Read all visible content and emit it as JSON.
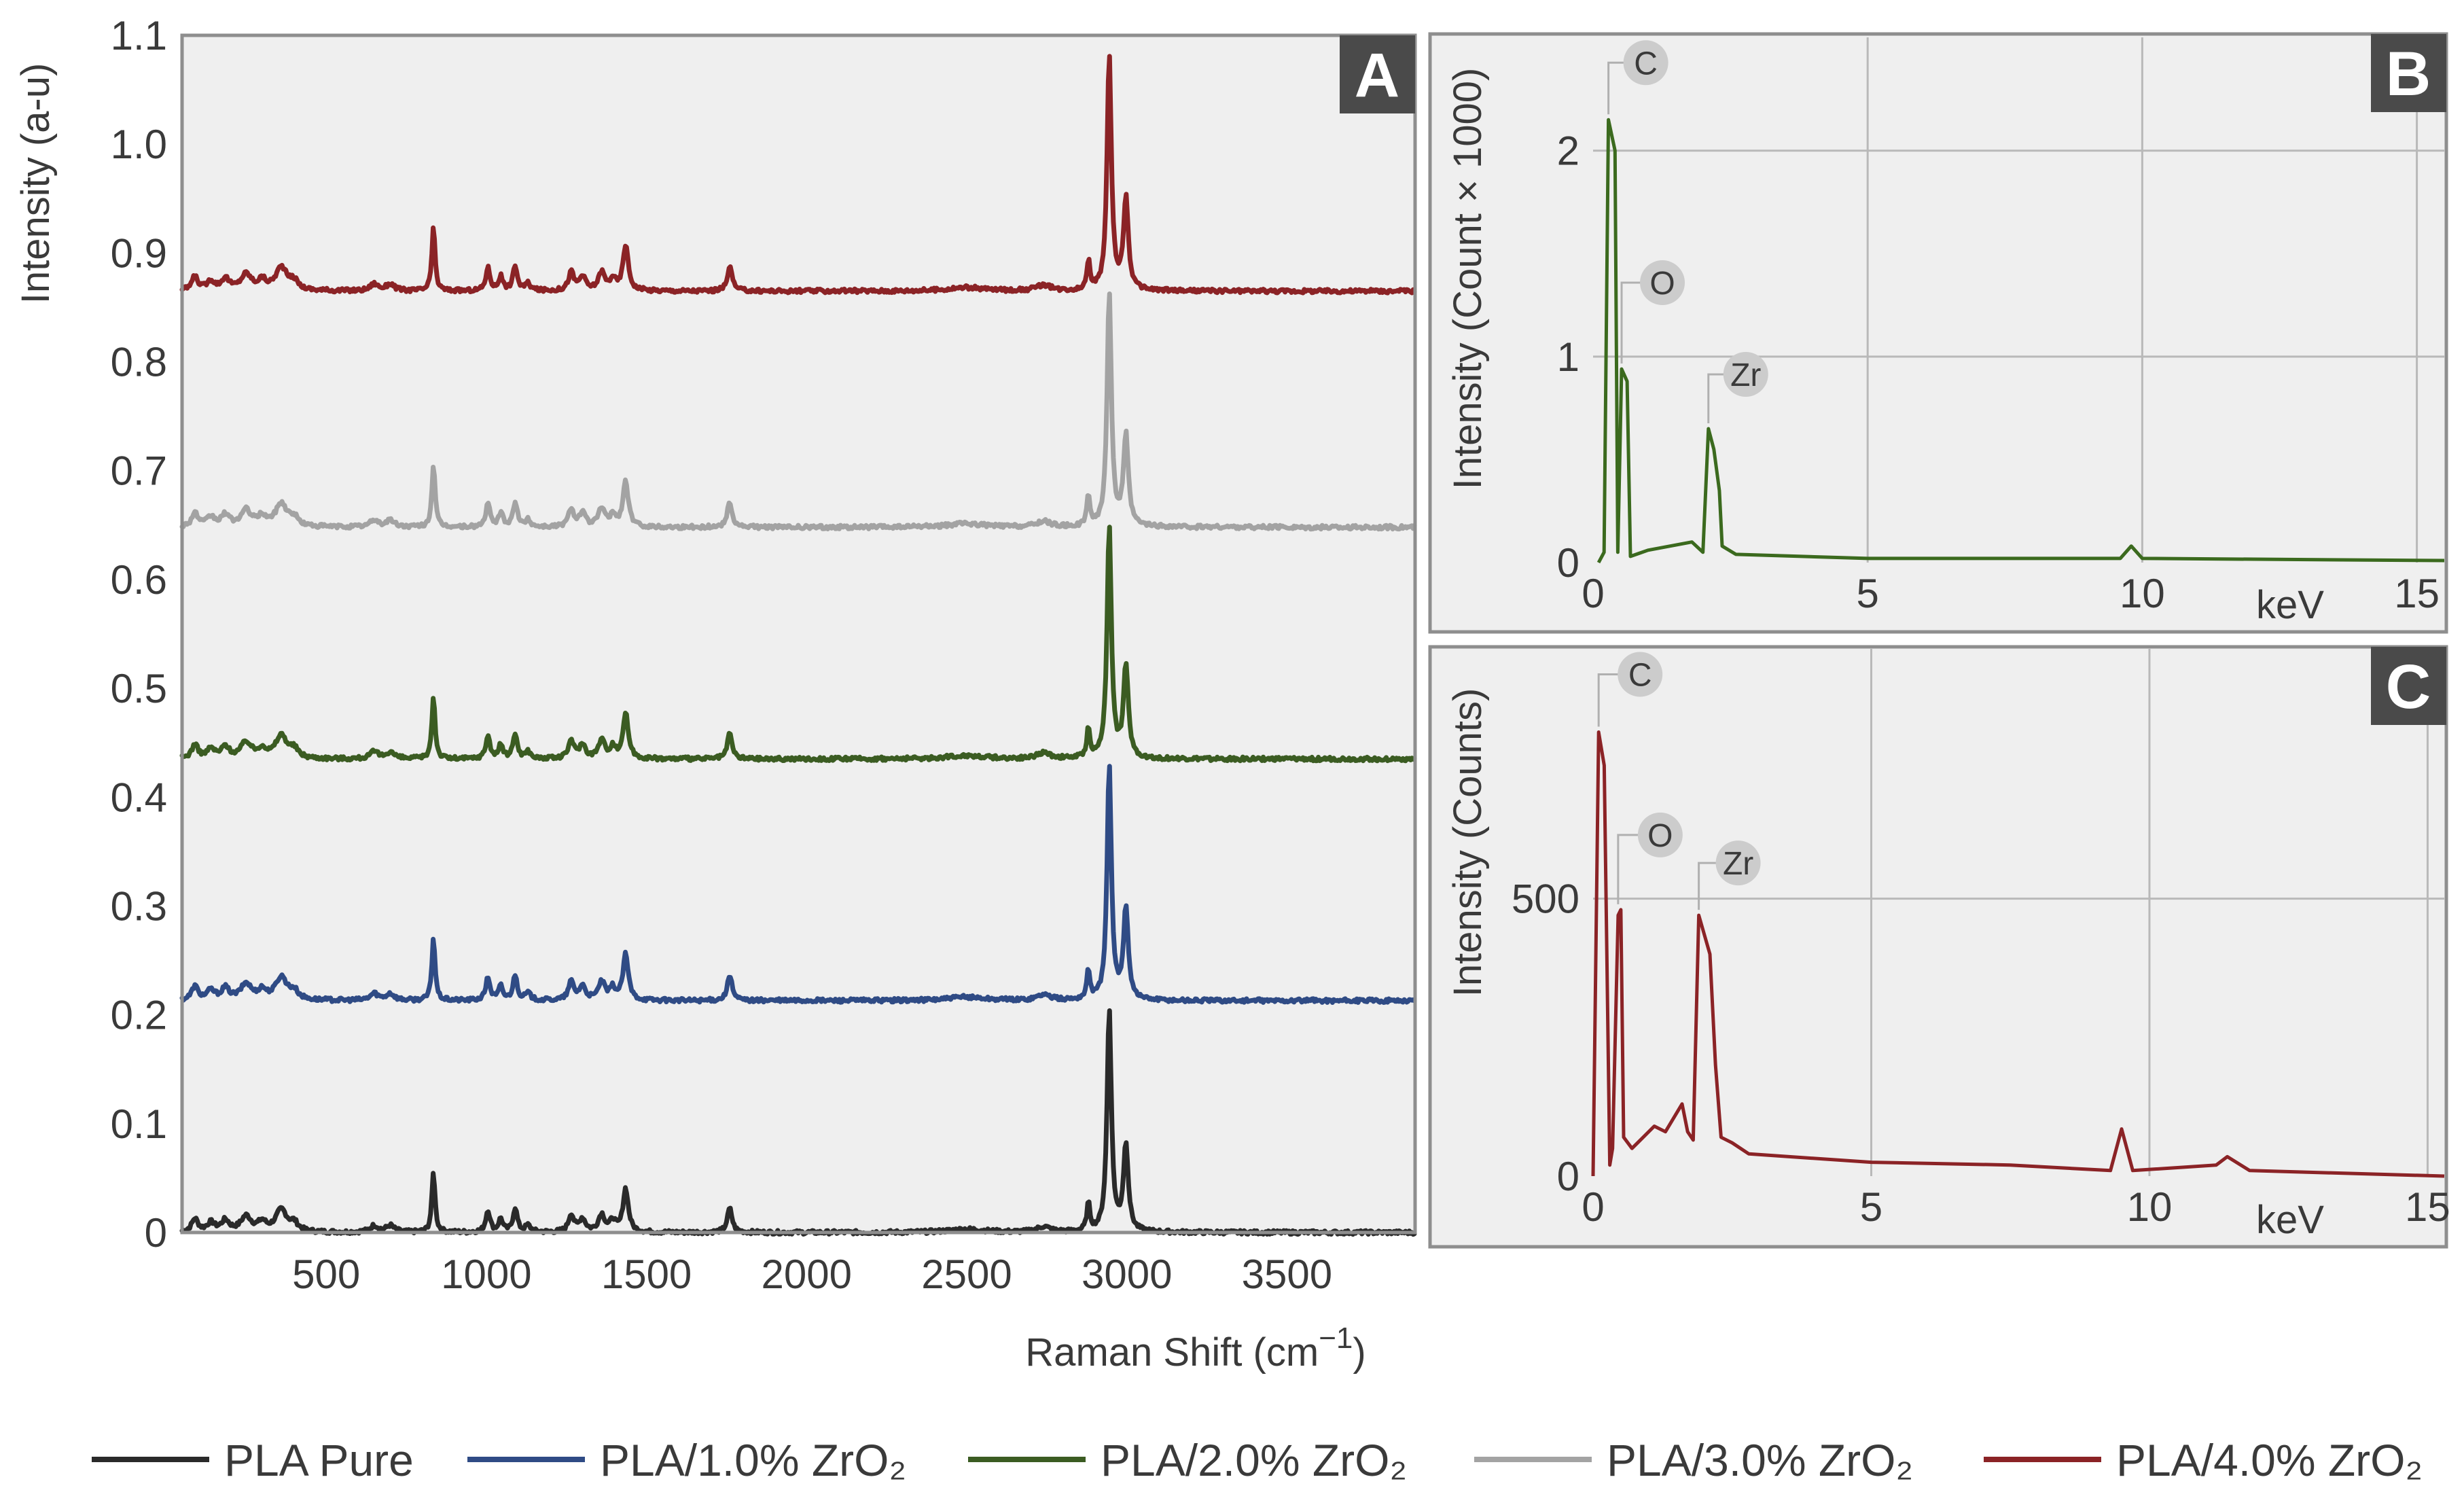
{
  "chart_data": [
    {
      "id": "A",
      "type": "line",
      "panel_label": "A",
      "xlabel": "Raman Shift (cm",
      "xlabel_sup": "−1",
      "xlabel_close": ")",
      "ylabel": "Intensity (a-u)",
      "xlim": [
        50,
        3900
      ],
      "ylim": [
        0,
        1.1
      ],
      "xticks": [
        500,
        1000,
        1500,
        2000,
        2500,
        3000,
        3500
      ],
      "xtick_labels": [
        "500",
        "1000",
        "1500",
        "2000",
        "2500",
        "3000",
        "3500"
      ],
      "yticks": [
        0,
        0.1,
        0.2,
        0.3,
        0.4,
        0.5,
        0.6,
        0.7,
        0.8,
        0.9,
        1.0,
        1.1
      ],
      "ytick_labels": [
        "0",
        "0.1",
        "0.2",
        "0.3",
        "0.4",
        "0.5",
        "0.6",
        "0.7",
        "0.8",
        "0.9",
        "1.0",
        "1.1"
      ],
      "peaks": [
        {
          "x": 90,
          "h": 0.012,
          "w": 12
        },
        {
          "x": 140,
          "h": 0.008,
          "w": 15
        },
        {
          "x": 185,
          "h": 0.01,
          "w": 15
        },
        {
          "x": 250,
          "h": 0.014,
          "w": 20
        },
        {
          "x": 300,
          "h": 0.008,
          "w": 15
        },
        {
          "x": 360,
          "h": 0.02,
          "w": 22
        },
        {
          "x": 400,
          "h": 0.007,
          "w": 15
        },
        {
          "x": 650,
          "h": 0.006,
          "w": 15
        },
        {
          "x": 700,
          "h": 0.006,
          "w": 15
        },
        {
          "x": 835,
          "h": 0.055,
          "w": 6
        },
        {
          "x": 1005,
          "h": 0.02,
          "w": 8
        },
        {
          "x": 1045,
          "h": 0.012,
          "w": 8
        },
        {
          "x": 1090,
          "h": 0.022,
          "w": 8
        },
        {
          "x": 1130,
          "h": 0.006,
          "w": 10
        },
        {
          "x": 1265,
          "h": 0.016,
          "w": 10
        },
        {
          "x": 1300,
          "h": 0.012,
          "w": 12
        },
        {
          "x": 1360,
          "h": 0.016,
          "w": 12
        },
        {
          "x": 1395,
          "h": 0.01,
          "w": 10
        },
        {
          "x": 1435,
          "h": 0.04,
          "w": 10
        },
        {
          "x": 1760,
          "h": 0.022,
          "w": 9
        },
        {
          "x": 2500,
          "h": 0.003,
          "w": 70
        },
        {
          "x": 2740,
          "h": 0.005,
          "w": 25
        },
        {
          "x": 2880,
          "h": 0.025,
          "w": 6
        },
        {
          "x": 2945,
          "h": 0.205,
          "w": 8
        },
        {
          "x": 2997,
          "h": 0.08,
          "w": 9
        }
      ],
      "series": [
        {
          "name": "PLA Pure",
          "color": "#2a2a2a",
          "offset": 0.0,
          "peak_scale": 1.0
        },
        {
          "name": "PLA/1.0% ZrO₂",
          "color": "#2f4b85",
          "offset": 0.213,
          "peak_scale": 1.05
        },
        {
          "name": "PLA/2.0% ZrO₂",
          "color": "#3b5c22",
          "offset": 0.435,
          "peak_scale": 1.05
        },
        {
          "name": "PLA/3.0% ZrO₂",
          "color": "#a3a3a3",
          "offset": 0.648,
          "peak_scale": 1.05
        },
        {
          "name": "PLA/4.0% ZrO₂",
          "color": "#8b2326",
          "offset": 0.865,
          "peak_scale": 1.05
        }
      ]
    },
    {
      "id": "B",
      "type": "line",
      "panel_label": "B",
      "xlabel": "keV",
      "ylabel": "Intensity (Count × 1000)",
      "xlim": [
        0,
        15.5
      ],
      "ylim": [
        0,
        2.55
      ],
      "xticks": [
        0,
        5,
        10,
        15
      ],
      "xtick_labels": [
        "0",
        "5",
        "10",
        "15"
      ],
      "yticks": [
        0,
        1,
        2
      ],
      "ytick_labels": [
        "0",
        "1",
        "2"
      ],
      "color": "#3b6a1e",
      "points": [
        [
          0.1,
          0.0
        ],
        [
          0.2,
          0.05
        ],
        [
          0.28,
          2.15
        ],
        [
          0.4,
          2.0
        ],
        [
          0.45,
          0.05
        ],
        [
          0.52,
          0.94
        ],
        [
          0.62,
          0.88
        ],
        [
          0.68,
          0.03
        ],
        [
          1.0,
          0.06
        ],
        [
          1.8,
          0.1
        ],
        [
          2.0,
          0.05
        ],
        [
          2.1,
          0.65
        ],
        [
          2.2,
          0.55
        ],
        [
          2.3,
          0.35
        ],
        [
          2.35,
          0.08
        ],
        [
          2.6,
          0.04
        ],
        [
          5.0,
          0.02
        ],
        [
          9.6,
          0.02
        ],
        [
          9.8,
          0.08
        ],
        [
          10.0,
          0.02
        ],
        [
          15.5,
          0.01
        ]
      ],
      "elements": [
        {
          "label": "C",
          "x": 0.28,
          "y": 2.15
        },
        {
          "label": "O",
          "x": 0.52,
          "y": 0.94
        },
        {
          "label": "Zr",
          "x": 2.1,
          "y": 0.65
        }
      ]
    },
    {
      "id": "C",
      "type": "line",
      "panel_label": "C",
      "xlabel": "keV",
      "ylabel": "Intensity (Counts)",
      "xlim": [
        0,
        15.3
      ],
      "ylim": [
        0,
        950
      ],
      "xticks": [
        0,
        5,
        10,
        15
      ],
      "xtick_labels": [
        "0",
        "5",
        "10",
        "15"
      ],
      "yticks": [
        0,
        500
      ],
      "ytick_labels": [
        "0",
        "500"
      ],
      "color": "#8b2326",
      "points": [
        [
          0.0,
          0
        ],
        [
          0.1,
          800
        ],
        [
          0.2,
          740
        ],
        [
          0.3,
          20
        ],
        [
          0.35,
          50
        ],
        [
          0.45,
          470
        ],
        [
          0.5,
          480
        ],
        [
          0.55,
          70
        ],
        [
          0.7,
          50
        ],
        [
          1.1,
          90
        ],
        [
          1.3,
          80
        ],
        [
          1.6,
          130
        ],
        [
          1.7,
          80
        ],
        [
          1.8,
          65
        ],
        [
          1.9,
          470
        ],
        [
          2.1,
          400
        ],
        [
          2.2,
          200
        ],
        [
          2.3,
          70
        ],
        [
          2.5,
          60
        ],
        [
          2.8,
          40
        ],
        [
          5.0,
          25
        ],
        [
          7.5,
          20
        ],
        [
          9.3,
          10
        ],
        [
          9.5,
          85
        ],
        [
          9.7,
          10
        ],
        [
          11.2,
          20
        ],
        [
          11.4,
          35
        ],
        [
          11.8,
          10
        ],
        [
          15.3,
          0
        ]
      ],
      "elements": [
        {
          "label": "C",
          "x": 0.1,
          "y": 800
        },
        {
          "label": "O",
          "x": 0.45,
          "y": 480
        },
        {
          "label": "Zr",
          "x": 1.9,
          "y": 470
        }
      ]
    }
  ],
  "legend": [
    {
      "label": "PLA Pure",
      "color": "#2a2a2a"
    },
    {
      "label": "PLA/1.0% ZrO₂",
      "color": "#2f4b85"
    },
    {
      "label": "PLA/2.0% ZrO₂",
      "color": "#3b5c22"
    },
    {
      "label": "PLA/3.0% ZrO₂",
      "color": "#a3a3a3"
    },
    {
      "label": "PLA/4.0% ZrO₂",
      "color": "#8b2326"
    }
  ]
}
